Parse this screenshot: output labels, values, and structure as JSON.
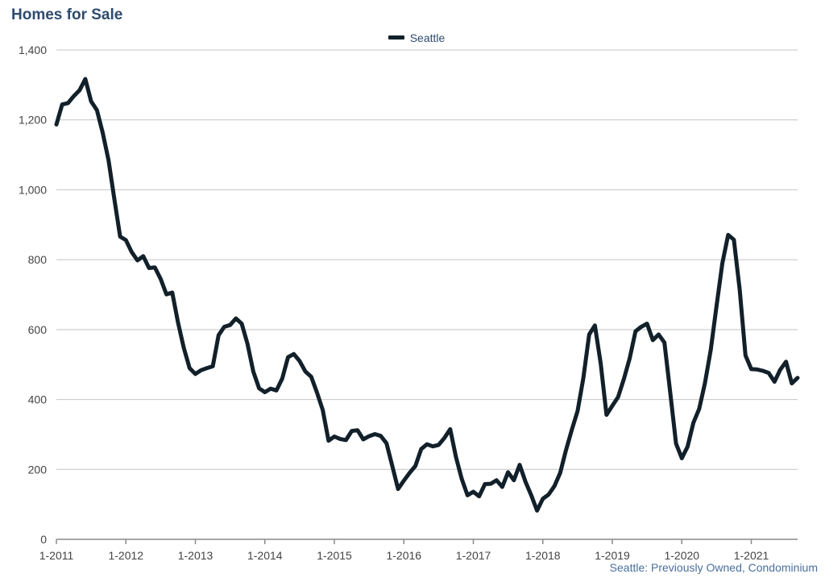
{
  "title": "Homes for Sale",
  "footnote": "Seattle: Previously Owned, Condominium",
  "colors": {
    "line": "#12202a",
    "grid": "#c4c4c4",
    "title": "#2f4b6e",
    "footnote": "#4a6f9e"
  },
  "chart_data": {
    "type": "line",
    "title": "Homes for Sale",
    "xlabel": "",
    "ylabel": "",
    "ylim": [
      0,
      1400
    ],
    "yticks": [
      "0",
      "200",
      "400",
      "600",
      "800",
      "1,000",
      "1,200",
      "1,400"
    ],
    "xticks": [
      "1-2011",
      "1-2012",
      "1-2013",
      "1-2014",
      "1-2015",
      "1-2016",
      "1-2017",
      "1-2018",
      "1-2019",
      "1-2020",
      "1-2021"
    ],
    "legend": "top-center",
    "grid": true,
    "start": "1-2011",
    "series": [
      {
        "name": "Seattle",
        "values": [
          1187,
          1244,
          1248,
          1268,
          1285,
          1317,
          1253,
          1228,
          1163,
          1085,
          974,
          866,
          856,
          822,
          798,
          810,
          776,
          778,
          745,
          701,
          706,
          621,
          548,
          490,
          473,
          484,
          490,
          495,
          584,
          608,
          613,
          632,
          617,
          559,
          480,
          432,
          421,
          431,
          426,
          460,
          521,
          530,
          510,
          480,
          465,
          420,
          370,
          282,
          294,
          287,
          284,
          310,
          312,
          286,
          295,
          301,
          296,
          275,
          210,
          144,
          168,
          190,
          210,
          258,
          272,
          266,
          270,
          290,
          315,
          236,
          173,
          126,
          136,
          123,
          158,
          159,
          169,
          150,
          192,
          169,
          213,
          165,
          126,
          82,
          116,
          128,
          152,
          190,
          255,
          313,
          367,
          462,
          586,
          612,
          503,
          356,
          382,
          407,
          459,
          518,
          595,
          608,
          617,
          570,
          586,
          563,
          420,
          274,
          232,
          265,
          333,
          373,
          447,
          542,
          668,
          790,
          871,
          857,
          715,
          526,
          487,
          486,
          482,
          476,
          451,
          485,
          508,
          446,
          462
        ]
      }
    ]
  }
}
